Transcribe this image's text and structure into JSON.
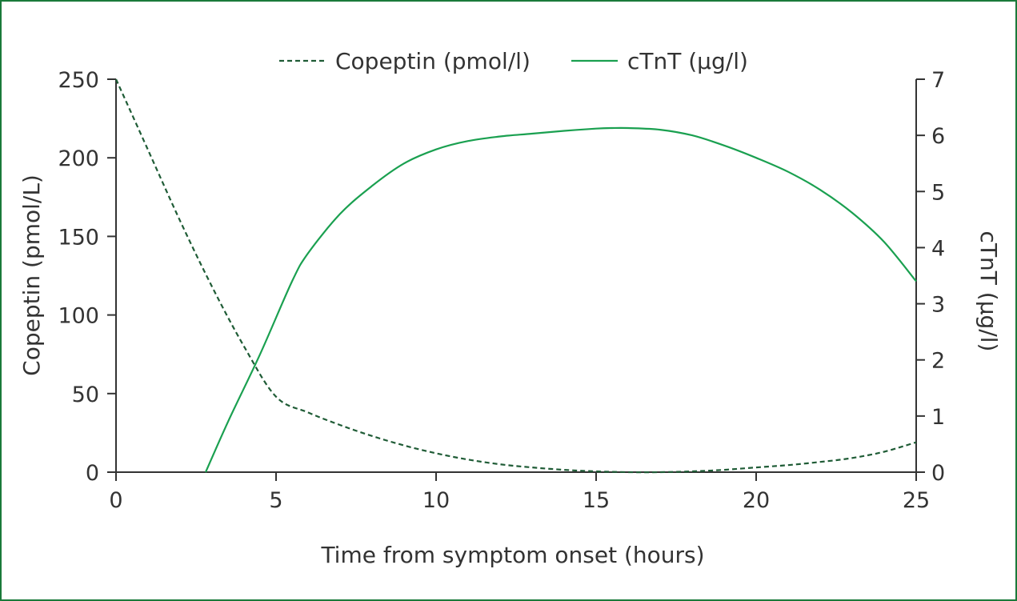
{
  "chart_data": {
    "type": "line",
    "title": "",
    "xlabel": "Time from symptom onset (hours)",
    "ylabel_left": "Copeptin (pmol/L)",
    "ylabel_right": "cTnT (µg/l)",
    "xlim": [
      0,
      25
    ],
    "ylim_left": [
      0,
      250
    ],
    "ylim_right": [
      0,
      7
    ],
    "x_ticks": [
      0,
      5,
      10,
      15,
      20,
      25
    ],
    "y_left_ticks": [
      0,
      50,
      100,
      150,
      200,
      250
    ],
    "y_right_ticks": [
      0,
      1,
      2,
      3,
      4,
      5,
      6,
      7
    ],
    "grid": false,
    "legend_position": "top-center",
    "series": [
      {
        "name": "Copeptin (pmol/l)",
        "axis": "left",
        "style": "dashed",
        "color": "#1f5c36",
        "x": [
          0,
          1,
          2,
          3,
          4,
          5,
          6,
          7,
          8,
          9,
          10,
          11,
          12,
          13,
          14,
          15,
          16,
          17,
          18,
          19,
          20,
          21,
          22,
          23,
          24,
          25
        ],
        "y": [
          250,
          205,
          160,
          118,
          80,
          48,
          38,
          30,
          23,
          17,
          12,
          8,
          5,
          3,
          1.5,
          0.5,
          0,
          0,
          0.5,
          1.5,
          3,
          4.5,
          6.5,
          9,
          13,
          19
        ]
      },
      {
        "name": "cTnT (µg/l)",
        "axis": "right",
        "style": "solid",
        "color": "#1aa050",
        "x": [
          2.8,
          3.5,
          4.5,
          5.5,
          6,
          7,
          8,
          9,
          10,
          11,
          12,
          13,
          14,
          15,
          15.5,
          16,
          17,
          18,
          19,
          20,
          21,
          22,
          23,
          24,
          25
        ],
        "y": [
          0,
          0.9,
          2.1,
          3.4,
          3.9,
          4.6,
          5.1,
          5.5,
          5.75,
          5.9,
          5.98,
          6.03,
          6.08,
          6.12,
          6.13,
          6.13,
          6.1,
          6.0,
          5.82,
          5.6,
          5.35,
          5.03,
          4.62,
          4.1,
          3.4
        ]
      }
    ]
  }
}
